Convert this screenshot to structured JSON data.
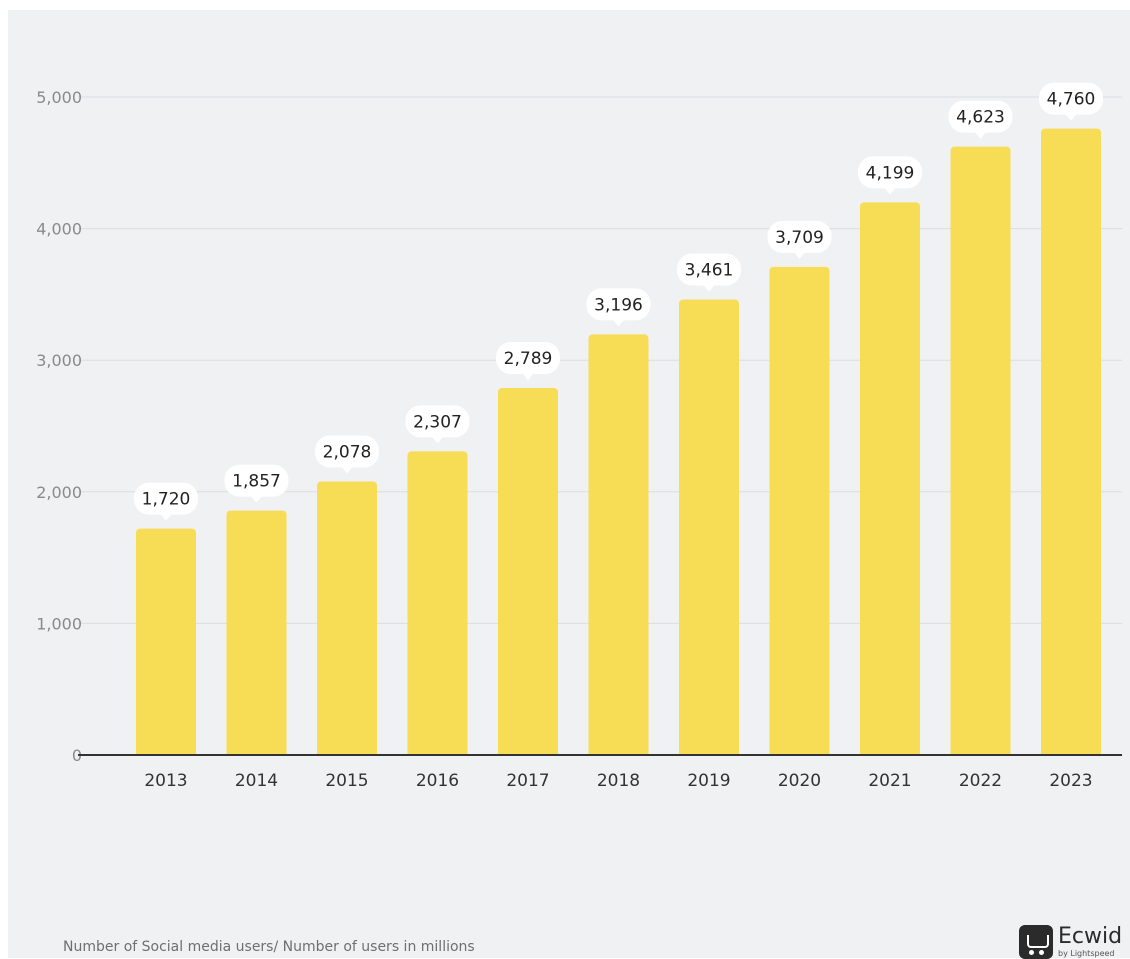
{
  "chart_data": {
    "type": "bar",
    "categories": [
      "2013",
      "2014",
      "2015",
      "2016",
      "2017",
      "2018",
      "2019",
      "2020",
      "2021",
      "2022",
      "2023"
    ],
    "values": [
      1720,
      1857,
      2078,
      2307,
      2789,
      3196,
      3461,
      3709,
      4199,
      4623,
      4760
    ],
    "value_labels": [
      "1,720",
      "1,857",
      "2,078",
      "2,307",
      "2,789",
      "3,196",
      "3,461",
      "3,709",
      "4,199",
      "4,623",
      "4,760"
    ],
    "yticks": [
      0,
      1000,
      2000,
      3000,
      4000,
      5000
    ],
    "ytick_labels": [
      "0",
      "1,000",
      "2,000",
      "3,000",
      "4,000",
      "5,000"
    ],
    "ylim": [
      0,
      5000
    ],
    "grid": true,
    "bar_color": "#f7dc55",
    "label_background": "#ffffff"
  },
  "caption": "Number of Social media users/ Number of users in millions",
  "brand": {
    "name": "Ecwid",
    "sub": "by Lightspeed",
    "icon": "cart-icon"
  }
}
